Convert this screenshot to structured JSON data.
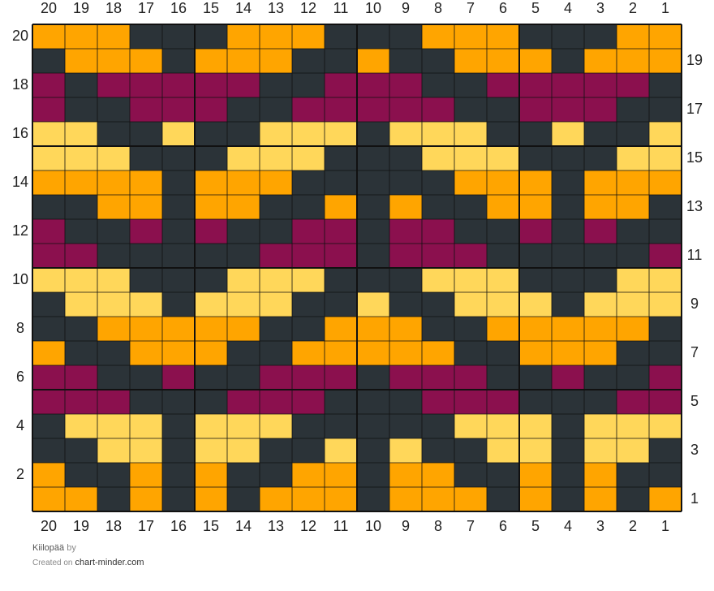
{
  "chart_data": {
    "type": "grid",
    "columns": [
      20,
      19,
      18,
      17,
      16,
      15,
      14,
      13,
      12,
      11,
      10,
      9,
      8,
      7,
      6,
      5,
      4,
      3,
      2,
      1
    ],
    "rows": [
      20,
      19,
      18,
      17,
      16,
      15,
      14,
      13,
      12,
      11,
      10,
      9,
      8,
      7,
      6,
      5,
      4,
      3,
      2,
      1
    ],
    "palette": {
      "D": "#2b3338",
      "O": "#ffa500",
      "Y": "#ffd75a",
      "P": "#8b104e"
    },
    "cells": [
      "OOODDDOOODDDOOODDDOO",
      "DOOODOOODDODDOOODOOO",
      "PDPPPPPDDPPPDDPPPPPD",
      "PDDPPPDDPPPPPDDPPPDD",
      "YYDDYDDYYYDYYYDDYDDY",
      "YYYDDDYYYDDDYYYDDDYY",
      "OOOODOOODDDDDOOODOOO",
      "DDOODOODDODODDOODOOD",
      "PDDPDPDDPPDPPDDPDPDD",
      "PPDDDDDPPPDPPPDDDDDP",
      "YYYDDDYYYDDDYYYDDDYY",
      "DYYYDYYYDDYDDYYYDYYY",
      "DDOOOOODDOOODDOOOOOD",
      "ODDOOODDOOOOODDOOODD",
      "PPDDPDDPPPDPPPDDPDDP",
      "PPPDDDPPPDDDPPPDDDPP",
      "DYYYDYYYDDDDDYYYDYYY",
      "DDYYDYYDDYDYDDYYDYYD",
      "ODDODODDOODOODDODODD",
      "OODODODOOODOOODODODO"
    ]
  },
  "footer": {
    "title": "Kiilopää",
    "by": "by",
    "created_on": "Created on",
    "site": "chart-minder.com"
  }
}
